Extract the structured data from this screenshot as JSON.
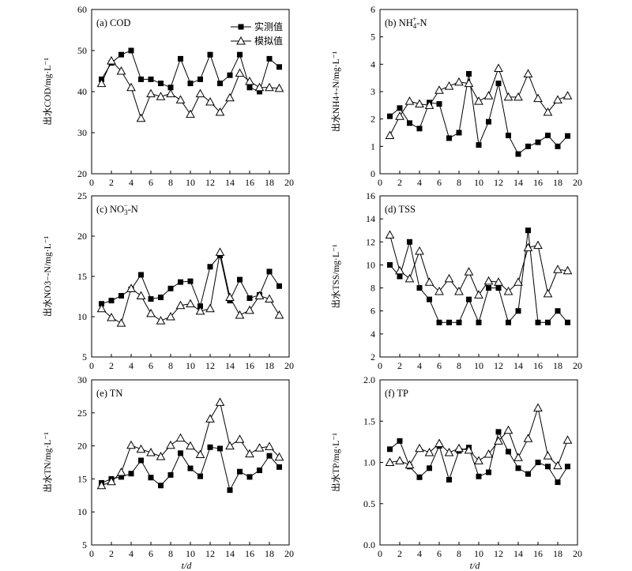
{
  "chart_data": [
    {
      "type": "line",
      "title": "(a) COD",
      "xlabel": "t/d",
      "ylabel": "出水COD/mg·L⁻¹",
      "xlim": [
        0,
        20
      ],
      "xticks": [
        "0",
        "2",
        "4",
        "6",
        "8",
        "10",
        "12",
        "14",
        "16",
        "18",
        "20"
      ],
      "ylim": [
        20,
        60
      ],
      "yticks": [
        "20",
        "30",
        "40",
        "50",
        "60"
      ],
      "legend_position": "top-right",
      "x": [
        1,
        2,
        3,
        4,
        5,
        6,
        7,
        8,
        9,
        10,
        11,
        12,
        13,
        14,
        15,
        16,
        17,
        18,
        19
      ],
      "series": [
        {
          "name": "实测值",
          "marker": "square",
          "values": [
            43,
            47,
            49,
            50,
            43,
            43,
            42,
            41,
            48,
            42,
            43,
            49,
            42,
            44,
            49,
            41,
            40,
            48,
            46
          ]
        },
        {
          "name": "模拟值",
          "marker": "triangle",
          "values": [
            42,
            47.5,
            45,
            41,
            33.5,
            39.5,
            38.8,
            39.5,
            38,
            34.5,
            39.5,
            37.5,
            35,
            38.5,
            44.5,
            42.5,
            41,
            41,
            40.8
          ]
        }
      ]
    },
    {
      "type": "line",
      "title": "(b) NH4+-N",
      "title_parts": {
        "pre": "(b) NH",
        "sub": "4",
        "sup": "+",
        "post": "-N"
      },
      "xlabel": "t/d",
      "ylabel": "出水NH4+-N/mg·L⁻¹",
      "xlim": [
        0,
        20
      ],
      "xticks": [
        "0",
        "2",
        "4",
        "6",
        "8",
        "10",
        "12",
        "14",
        "16",
        "18",
        "20"
      ],
      "ylim": [
        0,
        6
      ],
      "yticks": [
        "0",
        "1",
        "2",
        "3",
        "4",
        "5",
        "6"
      ],
      "x": [
        1,
        2,
        3,
        4,
        5,
        6,
        7,
        8,
        9,
        10,
        11,
        12,
        13,
        14,
        15,
        16,
        17,
        18,
        19
      ],
      "series": [
        {
          "name": "实测值",
          "marker": "square",
          "values": [
            2.1,
            2.4,
            1.85,
            1.65,
            2.6,
            2.55,
            1.3,
            1.5,
            3.65,
            1.05,
            1.9,
            3.3,
            1.4,
            0.72,
            1.0,
            1.15,
            1.4,
            1.0,
            1.38
          ]
        },
        {
          "name": "模拟值",
          "marker": "triangle",
          "values": [
            1.4,
            2.1,
            2.65,
            2.55,
            2.5,
            3.05,
            3.2,
            3.35,
            3.3,
            2.65,
            2.85,
            3.85,
            2.8,
            2.8,
            3.65,
            2.75,
            2.25,
            2.7,
            2.85
          ]
        }
      ]
    },
    {
      "type": "line",
      "title": "(c) NO3−-N",
      "title_parts": {
        "pre": "(c) NO",
        "sub": "3",
        "sup": "−",
        "post": "-N"
      },
      "xlabel": "t/d",
      "ylabel": "出水NO3−-N/mg·L⁻¹",
      "xlim": [
        0,
        20
      ],
      "xticks": [
        "0",
        "2",
        "4",
        "6",
        "8",
        "10",
        "12",
        "14",
        "16",
        "18",
        "20"
      ],
      "ylim": [
        5,
        25
      ],
      "yticks": [
        "5",
        "10",
        "15",
        "20",
        "25"
      ],
      "x": [
        1,
        2,
        3,
        4,
        5,
        6,
        7,
        8,
        9,
        10,
        11,
        12,
        13,
        14,
        15,
        16,
        17,
        18,
        19
      ],
      "series": [
        {
          "name": "实测值",
          "marker": "square",
          "values": [
            11.6,
            12.0,
            12.6,
            13.4,
            15.2,
            12.2,
            12.4,
            13.5,
            14.3,
            14.4,
            11.3,
            16.2,
            17.6,
            12.0,
            14.6,
            12.3,
            12.7,
            15.6,
            13.8
          ]
        },
        {
          "name": "模拟值",
          "marker": "triangle",
          "values": [
            11.0,
            9.9,
            9.2,
            13.5,
            12.6,
            10.4,
            9.5,
            10.0,
            11.4,
            11.6,
            10.7,
            11.0,
            18.0,
            12.4,
            10.2,
            10.8,
            12.6,
            12.2,
            10.2
          ]
        }
      ]
    },
    {
      "type": "line",
      "title": "(d) TSS",
      "xlabel": "t/d",
      "ylabel": "出水TSS/mg·L⁻¹",
      "xlim": [
        0,
        20
      ],
      "xticks": [
        "0",
        "2",
        "4",
        "6",
        "8",
        "10",
        "12",
        "14",
        "16",
        "18",
        "20"
      ],
      "ylim": [
        2,
        16
      ],
      "yticks": [
        "2",
        "4",
        "6",
        "8",
        "10",
        "12",
        "14",
        "16"
      ],
      "x": [
        1,
        2,
        3,
        4,
        5,
        6,
        7,
        8,
        9,
        10,
        11,
        12,
        13,
        14,
        15,
        16,
        17,
        18,
        19
      ],
      "series": [
        {
          "name": "实测值",
          "marker": "square",
          "values": [
            10,
            9,
            12,
            8,
            7,
            5,
            5,
            5,
            7,
            5,
            8,
            8,
            5,
            6,
            13,
            5,
            5,
            6,
            5
          ]
        },
        {
          "name": "模拟值",
          "marker": "triangle",
          "values": [
            12.6,
            9.5,
            8.8,
            11.2,
            8.5,
            7.7,
            8.8,
            7.7,
            9.4,
            7.4,
            8.6,
            8.5,
            7.7,
            8.5,
            11.5,
            11.7,
            7.5,
            9.6,
            9.5
          ]
        }
      ]
    },
    {
      "type": "line",
      "title": "(e) TN",
      "xlabel": "t/d",
      "ylabel": "出水TN/mg·L⁻¹",
      "xlim": [
        0,
        20
      ],
      "xticks": [
        "0",
        "2",
        "4",
        "6",
        "8",
        "10",
        "12",
        "14",
        "16",
        "18",
        "20"
      ],
      "ylim": [
        5,
        30
      ],
      "yticks": [
        "5",
        "10",
        "15",
        "20",
        "25",
        "30"
      ],
      "x": [
        1,
        2,
        3,
        4,
        5,
        6,
        7,
        8,
        9,
        10,
        11,
        12,
        13,
        14,
        15,
        16,
        17,
        18,
        19
      ],
      "series": [
        {
          "name": "实测值",
          "marker": "square",
          "values": [
            14.4,
            15.0,
            15.3,
            15.8,
            17.8,
            15.2,
            14.0,
            15.6,
            18.9,
            16.6,
            15.4,
            19.8,
            19.6,
            13.3,
            16.1,
            15.3,
            16.3,
            18.5,
            16.8
          ]
        },
        {
          "name": "模拟值",
          "marker": "triangle",
          "values": [
            14.0,
            14.6,
            16.0,
            20.1,
            19.5,
            19.0,
            18.4,
            20.1,
            21.2,
            20.0,
            18.7,
            24.1,
            26.6,
            20.0,
            21.0,
            18.8,
            19.7,
            19.9,
            18.3
          ]
        }
      ]
    },
    {
      "type": "line",
      "title": "(f) TP",
      "xlabel": "t/d",
      "ylabel": "出水TP/mg·L⁻¹",
      "xlim": [
        0,
        20
      ],
      "xticks": [
        "0",
        "2",
        "4",
        "6",
        "8",
        "10",
        "12",
        "14",
        "16",
        "18",
        "20"
      ],
      "ylim": [
        0,
        2
      ],
      "yticks": [
        "0.0",
        "0.5",
        "1.0",
        "1.5",
        "2.0"
      ],
      "x": [
        1,
        2,
        3,
        4,
        5,
        6,
        7,
        8,
        9,
        10,
        11,
        12,
        13,
        14,
        15,
        16,
        17,
        18,
        19
      ],
      "series": [
        {
          "name": "实测值",
          "marker": "square",
          "values": [
            1.16,
            1.26,
            0.95,
            0.82,
            0.93,
            1.2,
            0.79,
            1.14,
            1.18,
            0.83,
            0.88,
            1.37,
            1.13,
            0.93,
            0.86,
            1.0,
            0.95,
            0.76,
            0.95
          ]
        },
        {
          "name": "模拟值",
          "marker": "triangle",
          "values": [
            1.0,
            1.02,
            0.97,
            1.17,
            1.12,
            1.23,
            1.12,
            1.17,
            1.15,
            1.02,
            1.1,
            1.26,
            1.39,
            1.06,
            1.29,
            1.66,
            1.08,
            0.96,
            1.27
          ]
        }
      ]
    }
  ]
}
